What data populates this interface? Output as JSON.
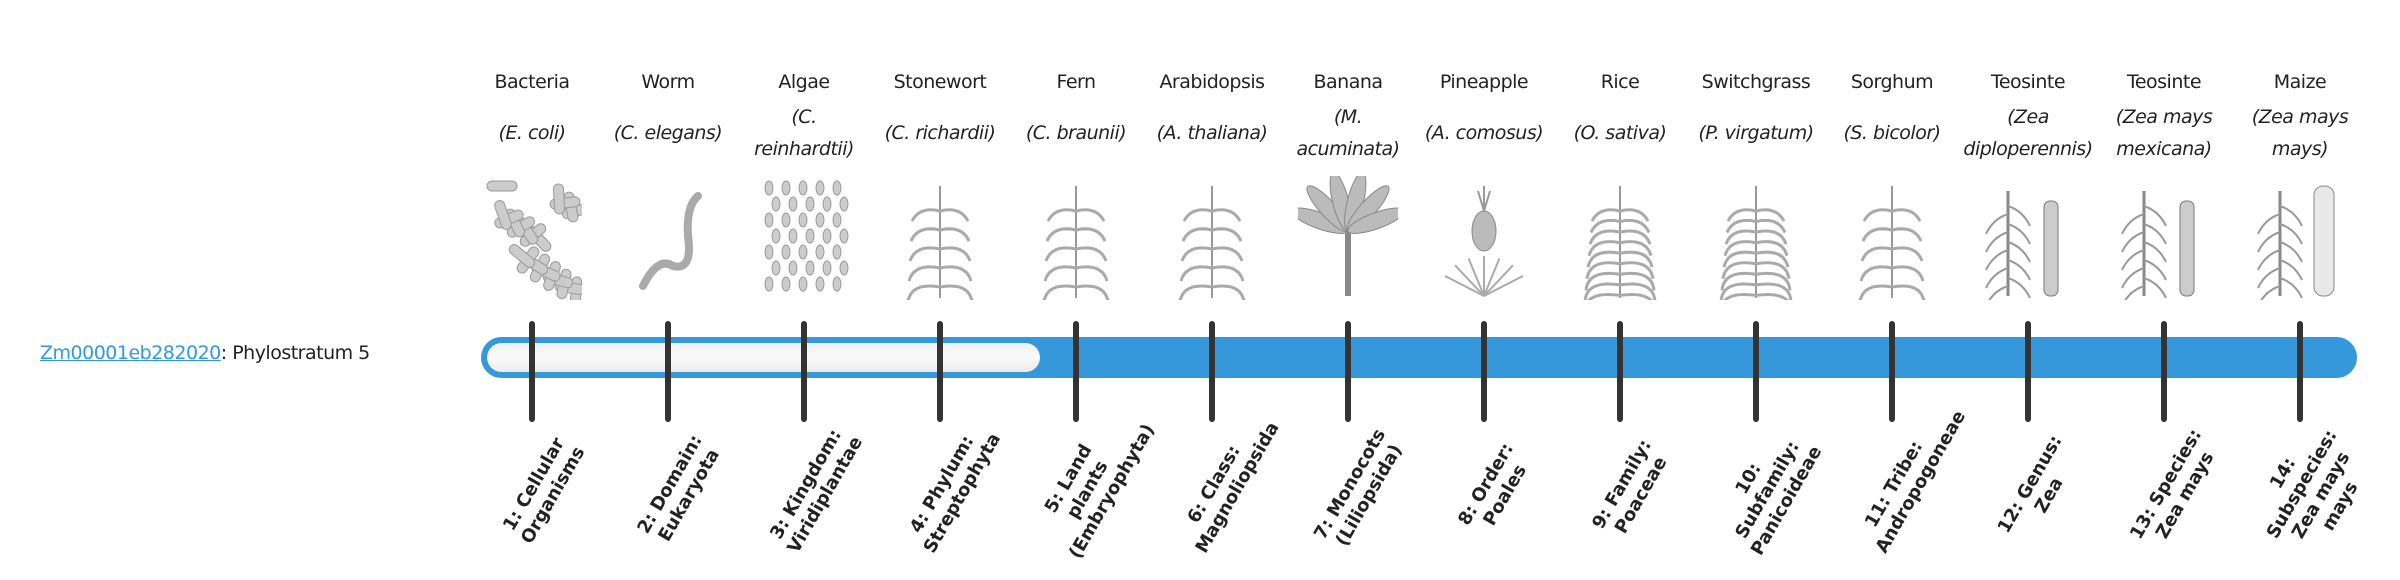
{
  "gene": {
    "id": "Zm00001eb282020",
    "suffix": ": Phylostratum 5"
  },
  "phylostratum": 5,
  "colors": {
    "accent": "#3498db",
    "tick": "#333333",
    "empty": "#f4f4f4"
  },
  "organisms": [
    {
      "common": "Bacteria",
      "scientific": "(E. coli)",
      "icon": "bacteria-icon"
    },
    {
      "common": "Worm",
      "scientific": "(C. elegans)",
      "icon": "worm-icon"
    },
    {
      "common": "Algae",
      "scientific": "(C. reinhardtii)",
      "icon": "algae-icon"
    },
    {
      "common": "Stonewort",
      "scientific": "(C. richardii)",
      "icon": "stonewort-icon"
    },
    {
      "common": "Fern",
      "scientific": "(C. braunii)",
      "icon": "fern-icon"
    },
    {
      "common": "Arabidopsis",
      "scientific": "(A. thaliana)",
      "icon": "arabidopsis-icon"
    },
    {
      "common": "Banana",
      "scientific": "(M. acuminata)",
      "icon": "banana-icon"
    },
    {
      "common": "Pineapple",
      "scientific": "(A. comosus)",
      "icon": "pineapple-icon"
    },
    {
      "common": "Rice",
      "scientific": "(O. sativa)",
      "icon": "rice-icon"
    },
    {
      "common": "Switchgrass",
      "scientific": "(P. virgatum)",
      "icon": "switchgrass-icon"
    },
    {
      "common": "Sorghum",
      "scientific": "(S. bicolor)",
      "icon": "sorghum-icon"
    },
    {
      "common": "Teosinte",
      "scientific": "(Zea diploperennis)",
      "icon": "teosinte-icon"
    },
    {
      "common": "Teosinte",
      "scientific": "(Zea mays mexicana)",
      "icon": "teosinte-icon"
    },
    {
      "common": "Maize",
      "scientific": "(Zea mays mays)",
      "icon": "maize-icon"
    }
  ],
  "strata": [
    "1: Cellular Organisms",
    "2: Domain: Eukaryota",
    "3: Kingdom: Viridiplantae",
    "4: Phylum: Streptophyta",
    "5: Land plants (Embryophyta)",
    "6: Class: Magnoliopsida",
    "7: Monocots (Liliopsida)",
    "8: Order: Poales",
    "9: Family: Poaceae",
    "10: Subfamily: Panicoideae",
    "11: Tribe: Andropogoneae",
    "12: Genus: Zea",
    "13: Species: Zea mays",
    "14: Subspecies: Zea mays mays"
  ]
}
